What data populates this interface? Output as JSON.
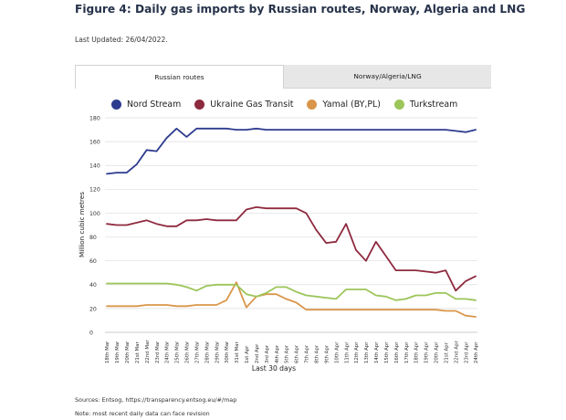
{
  "header": {
    "title": "Figure 4: Daily gas imports by Russian routes, Norway, Algeria and LNG",
    "last_updated": "Last Updated: 26/04/2022."
  },
  "tabs": [
    {
      "label": "Russian routes",
      "active": true
    },
    {
      "label": "Norway/Algeria/LNG",
      "active": false
    }
  ],
  "footer": {
    "sources": "Sources: Entsog, https://transparency.entsog.eu/#/map",
    "note": "Note: most recent daily data can face revision"
  },
  "chart_data": {
    "type": "line",
    "xlabel": "Last 30 days",
    "ylabel": "Million cubic metres",
    "ylim": [
      0,
      180
    ],
    "yticks": [
      0,
      20,
      40,
      60,
      80,
      100,
      120,
      140,
      160,
      180
    ],
    "grid": true,
    "legend_position": "top",
    "x": [
      "18th Mar",
      "19th Mar",
      "20th Mar",
      "21st Mar",
      "22nd Mar",
      "23rd Mar",
      "24th Mar",
      "25th Mar",
      "26th Mar",
      "27th Mar",
      "28th Mar",
      "29th Mar",
      "30th Mar",
      "31st Mar",
      "1st Apr",
      "2nd Apr",
      "3rd Apr",
      "4th Apr",
      "5th Apr",
      "6th Apr",
      "7th Apr",
      "8th Apr",
      "9th Apr",
      "10th Apr",
      "11th Apr",
      "12th Apr",
      "13th Apr",
      "14th Apr",
      "15th Apr",
      "16th Apr",
      "17th Apr",
      "18th Apr",
      "19th Apr",
      "20th Apr",
      "21st Apr",
      "22nd Apr",
      "23rd Apr",
      "24th Apr"
    ],
    "series": [
      {
        "name": "Nord Stream",
        "color": "#2e3c8f",
        "values": [
          133,
          134,
          134,
          141,
          153,
          152,
          163,
          171,
          164,
          171,
          171,
          171,
          171,
          170,
          170,
          171,
          170,
          170,
          170,
          170,
          170,
          170,
          170,
          170,
          170,
          170,
          170,
          170,
          170,
          170,
          170,
          170,
          170,
          170,
          170,
          169,
          168,
          170
        ]
      },
      {
        "name": "Ukraine Gas Transit",
        "color": "#8e2a3f",
        "values": [
          91,
          90,
          90,
          92,
          94,
          91,
          89,
          89,
          94,
          94,
          95,
          94,
          94,
          94,
          103,
          105,
          104,
          104,
          104,
          104,
          100,
          86,
          75,
          76,
          91,
          69,
          60,
          76,
          64,
          52,
          52,
          52,
          51,
          50,
          52,
          35,
          43,
          47
        ]
      },
      {
        "name": "Yamal (BY,PL)",
        "color": "#d9964a",
        "values": [
          22,
          22,
          22,
          22,
          23,
          23,
          23,
          22,
          22,
          23,
          23,
          23,
          27,
          42,
          21,
          30,
          32,
          32,
          28,
          25,
          19,
          19,
          19,
          19,
          19,
          19,
          19,
          19,
          19,
          19,
          19,
          19,
          19,
          19,
          18,
          18,
          14,
          13
        ]
      },
      {
        "name": "Turkstream",
        "color": "#9cc55a",
        "values": [
          41,
          41,
          41,
          41,
          41,
          41,
          41,
          40,
          38,
          35,
          39,
          40,
          40,
          40,
          32,
          30,
          33,
          38,
          38,
          34,
          31,
          30,
          29,
          28,
          36,
          36,
          36,
          31,
          30,
          27,
          28,
          31,
          31,
          33,
          33,
          28,
          28,
          27
        ]
      }
    ]
  }
}
